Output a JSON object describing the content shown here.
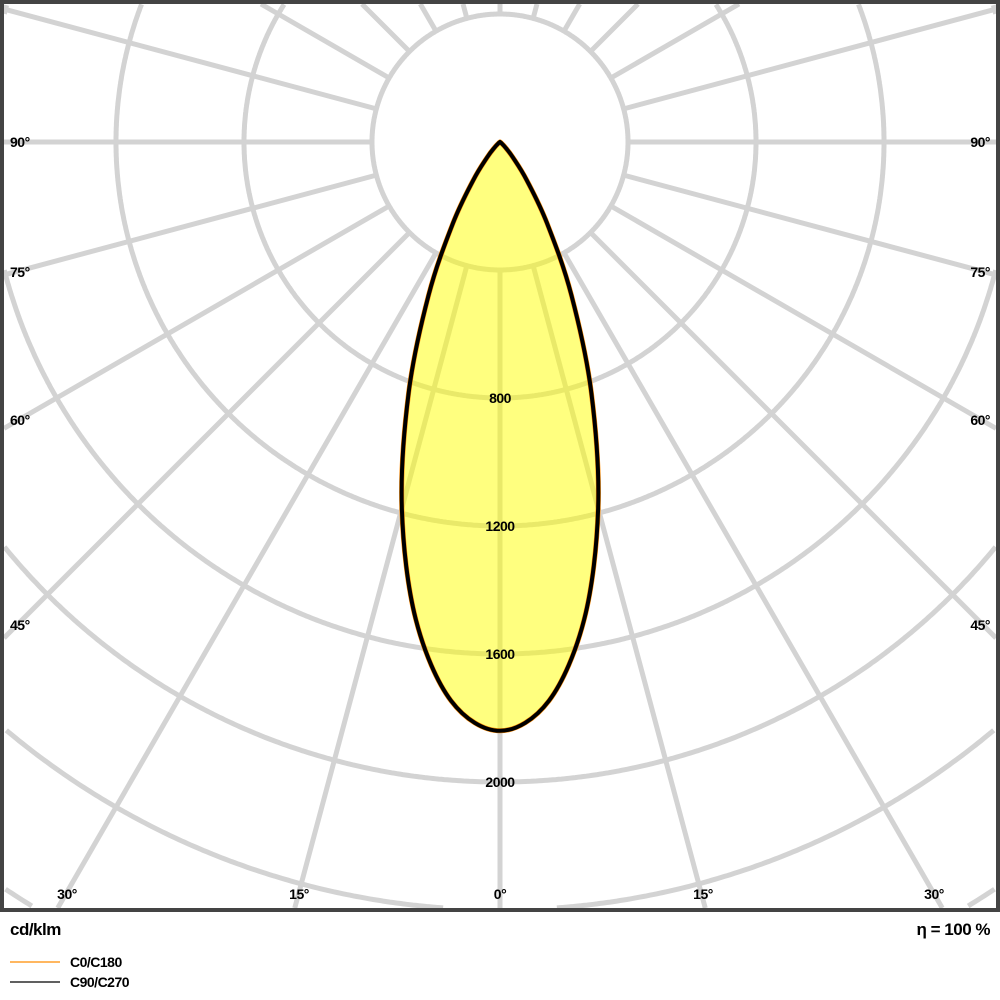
{
  "chart_data": {
    "type": "polar",
    "unit_label": "cd/klm",
    "efficiency_label": "η = 100 %",
    "radial_ticks": [
      400,
      800,
      1200,
      1600,
      2000,
      2400,
      2800
    ],
    "radial_tick_labels": [
      "800",
      "1200",
      "1600",
      "2000"
    ],
    "angle_step_deg": 15,
    "angle_labels_side": [
      "90°",
      "75°",
      "60°",
      "45°"
    ],
    "angle_labels_bottom": [
      "30°",
      "15°",
      "0°",
      "15°",
      "30°"
    ],
    "grid": true,
    "fill_color": "#ffff00",
    "angles_deg": [
      0,
      5,
      10,
      15,
      20,
      25,
      30,
      35,
      40,
      45,
      50,
      55,
      60,
      70,
      80,
      90
    ],
    "series": [
      {
        "name": "C0/C180",
        "color": "#ff8c00",
        "values": [
          1840,
          1753,
          1515,
          1185,
          835,
          528,
          296,
          146,
          62,
          23,
          7,
          2,
          0,
          0,
          0,
          0
        ]
      },
      {
        "name": "C90/C270",
        "color": "#000000",
        "values": [
          1840,
          1753,
          1515,
          1185,
          835,
          528,
          296,
          146,
          62,
          23,
          7,
          2,
          0,
          0,
          0,
          0
        ]
      }
    ]
  }
}
